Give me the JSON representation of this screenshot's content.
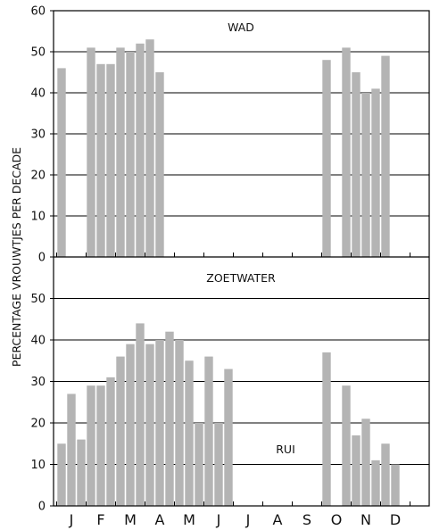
{
  "chart_data": {
    "type": "bar",
    "ylabel": "PERCENTAGE VROUWTJES PER DECADE",
    "categories": [
      "J",
      "F",
      "M",
      "A",
      "M",
      "J",
      "J",
      "A",
      "S",
      "O",
      "N",
      "D"
    ],
    "colors": {
      "bar": "#b4b4b4",
      "axis": "#000000"
    },
    "grid": true,
    "panels": [
      {
        "title": "WAD",
        "ylim": [
          0,
          60
        ],
        "yticks": [
          0,
          10,
          20,
          30,
          40,
          50,
          60
        ],
        "values": [
          46,
          null,
          null,
          51,
          47,
          47,
          51,
          50,
          52,
          53,
          45,
          null,
          null,
          null,
          null,
          null,
          null,
          null,
          null,
          null,
          null,
          null,
          null,
          null,
          null,
          null,
          null,
          48,
          null,
          51,
          45,
          40,
          41,
          49
        ]
      },
      {
        "title": "ZOETWATER",
        "annotation": "RUI",
        "ylim": [
          0,
          60
        ],
        "yticks": [
          0,
          10,
          20,
          30,
          40,
          50
        ],
        "values": [
          15,
          27,
          16,
          29,
          29,
          31,
          36,
          39,
          44,
          39,
          40,
          42,
          40,
          35,
          20,
          36,
          20,
          33,
          null,
          null,
          null,
          null,
          null,
          null,
          null,
          null,
          null,
          37,
          null,
          29,
          17,
          21,
          11,
          15,
          10
        ]
      }
    ]
  }
}
